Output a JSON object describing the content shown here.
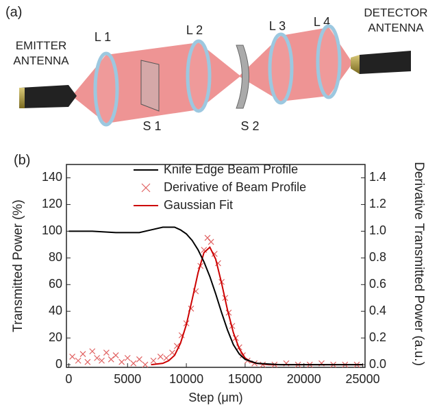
{
  "diagram": {
    "panel_label": "(a)",
    "emitter": [
      "EMITTER",
      "ANTENNA"
    ],
    "detector": [
      "DETECTOR",
      "ANTENNA"
    ],
    "lenses": [
      "L 1",
      "L 2",
      "L 3",
      "L 4"
    ],
    "slits": [
      "S 1",
      "S 2"
    ]
  },
  "chart_data": {
    "type": "line",
    "panel_label": "(b)",
    "x_label": "Step (μm)",
    "y_label": "Transmitted Power (%)",
    "y2_label": "Derivative Transmitted Power (a.u.)",
    "xlim": [
      -200,
      25200
    ],
    "xticks": [
      0,
      5000,
      10000,
      15000,
      20000,
      25000
    ],
    "ylim": [
      -2,
      150
    ],
    "yticks": [
      0,
      20,
      40,
      60,
      80,
      100,
      120,
      140
    ],
    "y2lim": [
      -0.02,
      1.5
    ],
    "y2ticks": [
      {
        "value": 0,
        "label": "0.0"
      },
      0.2,
      0.4,
      0.6,
      0.8,
      {
        "value": 1,
        "label": "1.0"
      },
      1.2,
      1.4
    ],
    "legend": "top",
    "series": [
      {
        "name": "Knife Edge Beam Profile",
        "color": "#000000",
        "type": "line",
        "axis": "y",
        "x": [
          0,
          2000,
          4000,
          6000,
          7000,
          8000,
          9000,
          9500,
          10000,
          10500,
          11000,
          11500,
          12000,
          12500,
          13000,
          13500,
          14000,
          14500,
          15000,
          16000,
          18000,
          20000,
          22000,
          25000
        ],
        "values": [
          100,
          100,
          99,
          99,
          101,
          103,
          103,
          101,
          98,
          93,
          86,
          77,
          66,
          53,
          39,
          26,
          15,
          8,
          4,
          1,
          0,
          0,
          0,
          0
        ]
      },
      {
        "name": "Derivative of Beam Profile",
        "color": "#e06060",
        "type": "scatter",
        "axis": "y2",
        "x": [
          300,
          800,
          1200,
          1600,
          2000,
          2400,
          2800,
          3200,
          3600,
          4000,
          4500,
          5000,
          5500,
          6000,
          6500,
          7200,
          7800,
          8300,
          8800,
          9200,
          9600,
          10000,
          10400,
          10800,
          11200,
          11500,
          11800,
          12100,
          12400,
          12700,
          13000,
          13300,
          13600,
          13900,
          14200,
          14500,
          14800,
          15200,
          15800,
          16500,
          17500,
          18500,
          19500,
          20500,
          21500,
          22500,
          23500,
          24500
        ],
        "values": [
          0.06,
          0.03,
          0.08,
          0.02,
          0.1,
          0.05,
          0.03,
          0.09,
          0.04,
          0.07,
          0.02,
          0.05,
          0.01,
          0.04,
          0,
          0.03,
          0.06,
          0.05,
          0.09,
          0.14,
          0.22,
          0.31,
          0.42,
          0.55,
          0.74,
          0.86,
          0.95,
          0.92,
          0.83,
          0.76,
          0.62,
          0.5,
          0.39,
          0.29,
          0.2,
          0.13,
          0.07,
          0.03,
          0.01,
          0,
          0,
          0.01,
          0,
          0,
          0.01,
          0,
          0,
          0
        ]
      },
      {
        "name": "Gaussian Fit",
        "color": "#cc0000",
        "type": "line",
        "axis": "y2",
        "x": [
          7000,
          8000,
          8500,
          9000,
          9500,
          10000,
          10500,
          11000,
          11500,
          12000,
          12500,
          13000,
          13500,
          14000,
          14500,
          15000,
          15500,
          16000,
          17000,
          25000
        ],
        "values": [
          0,
          0.01,
          0.03,
          0.07,
          0.16,
          0.3,
          0.49,
          0.69,
          0.84,
          0.88,
          0.79,
          0.61,
          0.41,
          0.24,
          0.12,
          0.05,
          0.02,
          0.01,
          0,
          0
        ]
      }
    ]
  }
}
